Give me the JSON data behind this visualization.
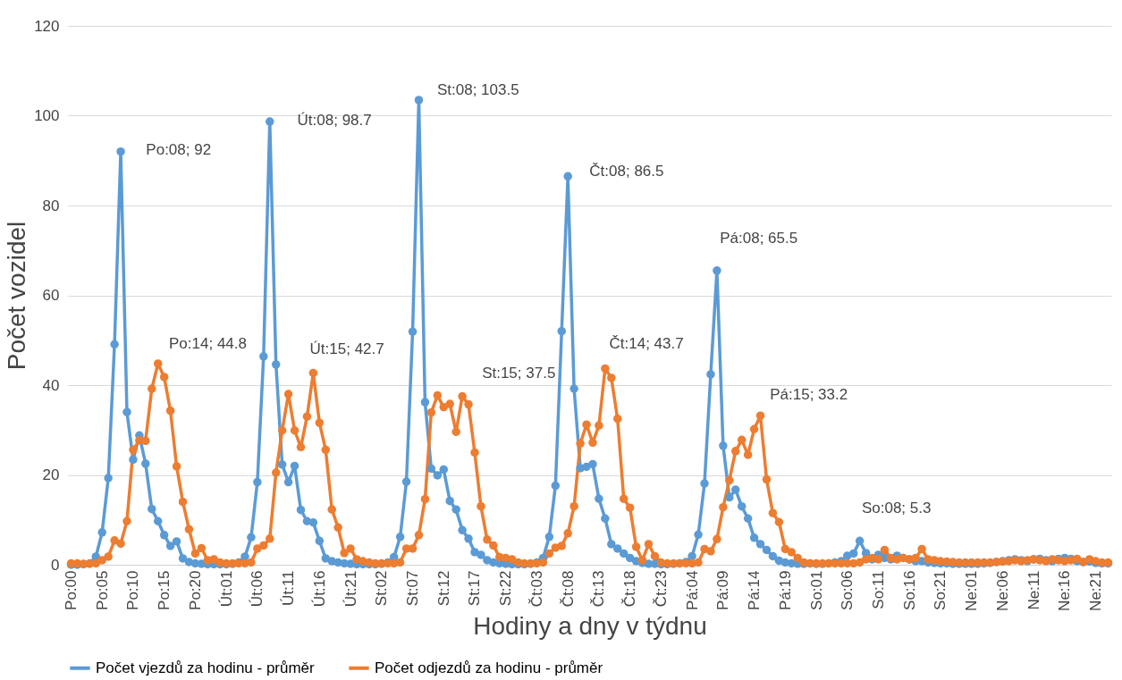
{
  "chart_data": {
    "type": "line",
    "xlabel": "Hodiny a dny v týdnu",
    "ylabel": "Počet vozidel",
    "categories": [
      "Po:00",
      null,
      null,
      null,
      null,
      "Po:05",
      null,
      null,
      null,
      null,
      "Po:10",
      null,
      null,
      null,
      null,
      "Po:15",
      null,
      null,
      null,
      null,
      "Po:20",
      null,
      null,
      null,
      null,
      "Út:01",
      null,
      null,
      null,
      null,
      "Út:06",
      null,
      null,
      null,
      null,
      "Út:11",
      null,
      null,
      null,
      null,
      "Út:16",
      null,
      null,
      null,
      null,
      "Út:21",
      null,
      null,
      null,
      null,
      "St:02",
      null,
      null,
      null,
      null,
      "St:07",
      null,
      null,
      null,
      null,
      "St:12",
      null,
      null,
      null,
      null,
      "St:17",
      null,
      null,
      null,
      null,
      "St:22",
      null,
      null,
      null,
      null,
      "Čt:03",
      null,
      null,
      null,
      null,
      "Čt:08",
      null,
      null,
      null,
      null,
      "Čt:13",
      null,
      null,
      null,
      null,
      "Čt:18",
      null,
      null,
      null,
      null,
      "Čt:23",
      null,
      null,
      null,
      null,
      "Pá:04",
      null,
      null,
      null,
      null,
      "Pá:09",
      null,
      null,
      null,
      null,
      "Pá:14",
      null,
      null,
      null,
      null,
      "Pá:19",
      null,
      null,
      null,
      null,
      "So:01",
      null,
      null,
      null,
      null,
      "So:06",
      null,
      null,
      null,
      null,
      "So:11",
      null,
      null,
      null,
      null,
      "So:16",
      null,
      null,
      null,
      null,
      "So:21",
      null,
      null,
      null,
      null,
      "Ne:01",
      null,
      null,
      null,
      null,
      "Ne:06",
      null,
      null,
      null,
      null,
      "Ne:11",
      null,
      null,
      null,
      null,
      "Ne:16",
      null,
      null,
      null,
      null,
      "Ne:21",
      null,
      null
    ],
    "series": [
      {
        "name": "Počet vjezdů za hodinu - průměr",
        "color": "#5b9bd5",
        "values": [
          0,
          0,
          0.1,
          0.3,
          1.8,
          7.2,
          19.3,
          49.1,
          92,
          34,
          23.4,
          28.8,
          22.5,
          12.4,
          9.7,
          6.6,
          4.2,
          5.2,
          1.4,
          0.6,
          0.3,
          0.2,
          0.1,
          0.1,
          0.1,
          0.1,
          0.2,
          0.5,
          1.8,
          6.1,
          18.4,
          46.4,
          98.7,
          44.6,
          22.3,
          18.4,
          22,
          12.2,
          9.7,
          9.4,
          5.3,
          1.4,
          0.8,
          0.5,
          0.3,
          0.2,
          0.1,
          0.1,
          0.1,
          0.1,
          0.2,
          0.5,
          1.7,
          6.2,
          18.5,
          51.9,
          103.5,
          36.2,
          21.4,
          19.9,
          21.2,
          14.2,
          12.3,
          7.7,
          5.8,
          2.8,
          2.2,
          1,
          0.5,
          0.3,
          0.2,
          0.1,
          0.1,
          0.1,
          0.2,
          0.5,
          1.5,
          6.2,
          17.6,
          52,
          86.5,
          39.2,
          21.5,
          21.8,
          22.4,
          14.7,
          10.3,
          4.6,
          3.6,
          2.5,
          1.5,
          0.8,
          0.4,
          0.2,
          0.2,
          0.1,
          0.1,
          0.2,
          0.3,
          0.6,
          1.9,
          6.7,
          18.1,
          42.4,
          65.5,
          26.5,
          15,
          16.7,
          13,
          10.3,
          6,
          4.6,
          3.3,
          1.9,
          0.9,
          0.5,
          0.3,
          0.2,
          0.2,
          0.3,
          0.2,
          0.2,
          0.3,
          0.5,
          0.8,
          2,
          2.5,
          5.3,
          2.6,
          1.2,
          2.2,
          1.5,
          1.2,
          2,
          1.5,
          1.2,
          0.8,
          0.8,
          0.5,
          0.4,
          0.3,
          0.3,
          0.2,
          0.2,
          0.2,
          0.2,
          0.2,
          0.3,
          0.4,
          0.6,
          0.8,
          1,
          1.2,
          1,
          0.8,
          1.2,
          1.3,
          1,
          0.8,
          1.3,
          1.5,
          1.3,
          0.8,
          0.6,
          0.7,
          0.4,
          0.3,
          0.3
        ]
      },
      {
        "name": "Počet odjezdů za hodinu - průměr",
        "color": "#ed7d31",
        "values": [
          0.3,
          0.3,
          0.2,
          0.2,
          0.3,
          1.0,
          1.8,
          5.4,
          4.7,
          9.7,
          25.6,
          27.7,
          27.6,
          39.2,
          44.8,
          41.8,
          34.3,
          21.9,
          14,
          7.9,
          2.5,
          3.7,
          1,
          1.2,
          0.5,
          0.3,
          0.3,
          0.3,
          0.3,
          0.5,
          3.6,
          4.3,
          5.8,
          20.5,
          29.9,
          38,
          29.9,
          26.2,
          33,
          42.7,
          31.6,
          25.6,
          12.3,
          8.3,
          2.6,
          3.6,
          1.2,
          0.8,
          0.5,
          0.3,
          0.3,
          0.3,
          0.3,
          0.5,
          3.6,
          3.6,
          6.6,
          14.6,
          33.9,
          37.7,
          35.1,
          35.8,
          29.6,
          37.5,
          35.7,
          25,
          13,
          5.6,
          4.3,
          1.7,
          1.5,
          1.2,
          0.5,
          0.3,
          0.3,
          0.3,
          0.5,
          2.5,
          3.8,
          4.2,
          7,
          13,
          27,
          31.2,
          27.2,
          31,
          43.7,
          41.6,
          32.5,
          14.7,
          12.7,
          4,
          1,
          4.6,
          1.9,
          0.5,
          0.3,
          0.3,
          0.3,
          0.3,
          0.3,
          0.5,
          3.5,
          3,
          5.7,
          12.8,
          18.8,
          25.3,
          27.8,
          24.5,
          30.2,
          33.2,
          19,
          11.5,
          9.5,
          3.5,
          2.8,
          1.5,
          0.5,
          0.3,
          0.3,
          0.3,
          0.3,
          0.3,
          0.3,
          0.3,
          0.3,
          0.5,
          1.2,
          1.5,
          1.2,
          3.3,
          1.5,
          1.2,
          1.5,
          1.2,
          1.5,
          3.5,
          1.2,
          1,
          0.8,
          0.7,
          0.6,
          0.5,
          0.5,
          0.5,
          0.5,
          0.5,
          0.5,
          0.6,
          0.7,
          0.8,
          1,
          0.8,
          1,
          1.2,
          1,
          0.8,
          1.2,
          1,
          0.8,
          1,
          1.3,
          0.6,
          1.2,
          0.8,
          0.5,
          0.5
        ]
      }
    ],
    "ylim": [
      0,
      120
    ],
    "yticks": [
      0,
      20,
      40,
      60,
      80,
      100,
      120
    ],
    "grid": "y",
    "legend": "bottom",
    "marker": "circle",
    "line_style": "solid",
    "annotations": [
      "Po:08; 92",
      "Po:14; 44.8",
      "Út:08; 98.7",
      "Út:15; 42.7",
      "St:08; 103.5",
      "St:15; 37.5",
      "Čt:08; 86.5",
      "Čt:14; 43.7",
      "Pá:08; 65.5",
      "Pá:15; 33.2",
      "So:08; 5.3"
    ]
  }
}
